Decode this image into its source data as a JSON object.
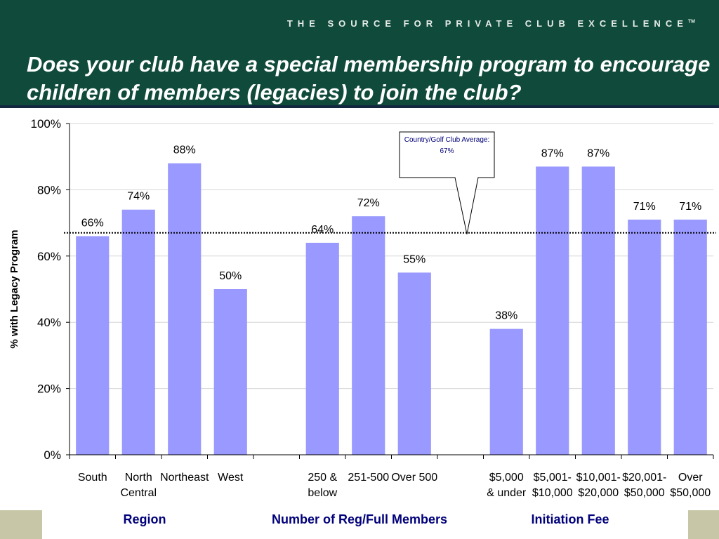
{
  "header": {
    "tagline": "THE SOURCE FOR PRIVATE CLUB EXCELLENCE",
    "trademark": "TM",
    "title": "Does your club have a special membership program to encourage children of members (legacies) to join the club?"
  },
  "colors": {
    "header_bg": "#0f4a3a",
    "bar": "#9999ff",
    "group_label": "#00007a",
    "footer_accent": "#c7c7a7"
  },
  "chart_data": {
    "type": "bar",
    "ylabel": "% with Legacy Program",
    "ylim": [
      0,
      100
    ],
    "yticks": [
      "0%",
      "20%",
      "40%",
      "60%",
      "80%",
      "100%"
    ],
    "grid": true,
    "value_format": "percent",
    "groups": [
      {
        "name": "Region",
        "categories": [
          [
            "South"
          ],
          [
            "North",
            "Central"
          ],
          [
            "Northeast"
          ],
          [
            "West"
          ]
        ],
        "values": [
          66,
          74,
          88,
          50
        ]
      },
      {
        "name": "Number of Reg/Full Members",
        "categories": [
          [
            "250 &",
            "below"
          ],
          [
            "251-500"
          ],
          [
            "Over 500"
          ]
        ],
        "values": [
          64,
          72,
          55
        ]
      },
      {
        "name": "Initiation Fee",
        "categories": [
          [
            "$5,000",
            "& under"
          ],
          [
            "$5,001-",
            "$10,000"
          ],
          [
            "$10,001-",
            "$20,000"
          ],
          [
            "$20,001-",
            "$50,000"
          ],
          [
            "Over",
            "$50,000"
          ]
        ],
        "values": [
          38,
          87,
          87,
          71,
          71
        ]
      }
    ],
    "reference_line": {
      "value": 67,
      "label_line1": "Country/Golf Club Average:",
      "label_line2": "67%"
    }
  }
}
